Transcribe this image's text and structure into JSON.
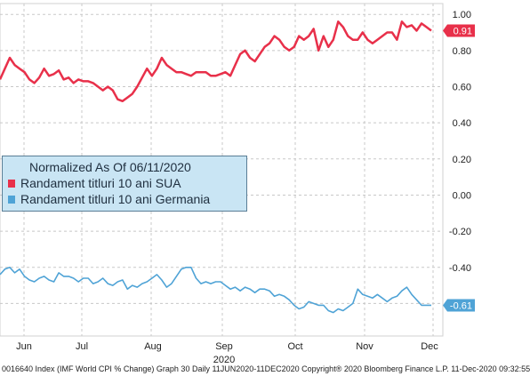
{
  "chart_data": {
    "type": "line",
    "legend_header": "Normalized As Of 06/11/2020",
    "legend_position": "left-middle",
    "x_tick_labels": [
      "Jun",
      "Jul",
      "Aug",
      "Sep",
      "Oct",
      "Nov",
      "Dec"
    ],
    "x_year_label": "2020",
    "y_ticks": [
      1.0,
      0.8,
      0.6,
      0.4,
      0.2,
      0.0,
      -0.2,
      -0.4,
      -0.6
    ],
    "y_tick_labels": [
      "1.00",
      "0.80",
      "0.60",
      "0.40",
      "0.20",
      "0.00",
      "-0.20",
      "-0.40",
      "-0.60"
    ],
    "ylim": [
      -0.78,
      1.06
    ],
    "grid": "dashed horizontal and vertical",
    "series": [
      {
        "name": "Randament titluri 10 ani SUA",
        "color": "#e8304a",
        "last_value_label": "0.91",
        "values": [
          0.64,
          0.7,
          0.76,
          0.72,
          0.7,
          0.68,
          0.64,
          0.62,
          0.65,
          0.7,
          0.66,
          0.67,
          0.69,
          0.64,
          0.65,
          0.62,
          0.64,
          0.63,
          0.63,
          0.62,
          0.6,
          0.58,
          0.6,
          0.58,
          0.53,
          0.52,
          0.54,
          0.56,
          0.6,
          0.65,
          0.7,
          0.66,
          0.7,
          0.76,
          0.72,
          0.7,
          0.68,
          0.68,
          0.67,
          0.66,
          0.68,
          0.68,
          0.68,
          0.66,
          0.66,
          0.67,
          0.68,
          0.66,
          0.72,
          0.78,
          0.8,
          0.76,
          0.74,
          0.78,
          0.82,
          0.84,
          0.88,
          0.86,
          0.82,
          0.8,
          0.82,
          0.88,
          0.86,
          0.88,
          0.92,
          0.8,
          0.88,
          0.82,
          0.86,
          0.96,
          0.93,
          0.88,
          0.86,
          0.86,
          0.9,
          0.86,
          0.84,
          0.86,
          0.88,
          0.9,
          0.9,
          0.86,
          0.96,
          0.93,
          0.94,
          0.91,
          0.95,
          0.93,
          0.91
        ]
      },
      {
        "name": "Randament titluri 10 ani Germania",
        "color": "#4fa3d6",
        "last_value_label": "-0.61",
        "values": [
          -0.44,
          -0.41,
          -0.4,
          -0.43,
          -0.41,
          -0.45,
          -0.47,
          -0.48,
          -0.46,
          -0.45,
          -0.47,
          -0.48,
          -0.43,
          -0.45,
          -0.45,
          -0.46,
          -0.48,
          -0.46,
          -0.46,
          -0.49,
          -0.48,
          -0.46,
          -0.49,
          -0.5,
          -0.48,
          -0.47,
          -0.52,
          -0.5,
          -0.51,
          -0.49,
          -0.48,
          -0.46,
          -0.44,
          -0.47,
          -0.51,
          -0.49,
          -0.45,
          -0.41,
          -0.4,
          -0.4,
          -0.46,
          -0.49,
          -0.48,
          -0.49,
          -0.48,
          -0.48,
          -0.5,
          -0.52,
          -0.51,
          -0.53,
          -0.51,
          -0.52,
          -0.54,
          -0.52,
          -0.52,
          -0.53,
          -0.56,
          -0.55,
          -0.56,
          -0.58,
          -0.61,
          -0.63,
          -0.62,
          -0.59,
          -0.6,
          -0.61,
          -0.61,
          -0.64,
          -0.65,
          -0.63,
          -0.64,
          -0.62,
          -0.6,
          -0.52,
          -0.55,
          -0.56,
          -0.57,
          -0.55,
          -0.57,
          -0.59,
          -0.57,
          -0.56,
          -0.53,
          -0.51,
          -0.55,
          -0.58,
          -0.61,
          -0.61,
          -0.61
        ]
      }
    ]
  },
  "footer": {
    "text": "0016640 Index (IMF World CPI % Change) Graph 30 Daily 11JUN2020-11DEC2020 Copyright® 2020 Bloomberg Finance L.P. 11-Dec-2020 09:32:55"
  }
}
